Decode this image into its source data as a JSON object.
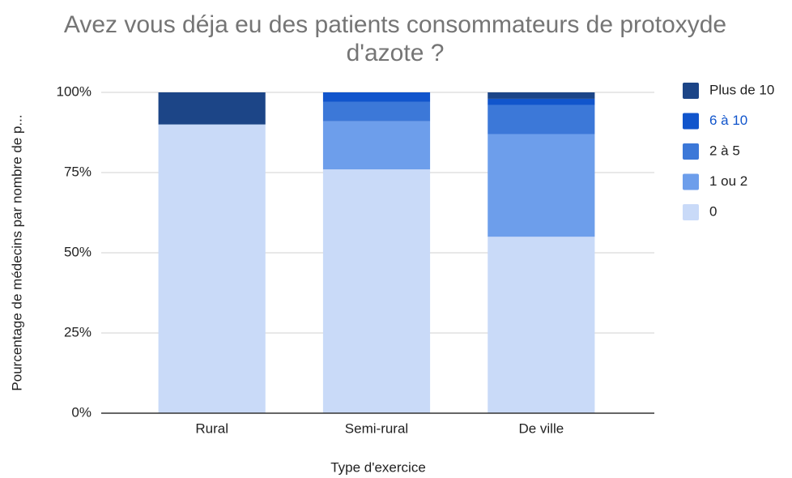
{
  "chart_data": {
    "type": "stacked_bar",
    "title": "Avez vous déja eu des patients consommateurs de protoxyde d'azote ?",
    "title_lines": [
      "Avez vous déja eu des patients consommateurs de protoxyde",
      "d'azote ?"
    ],
    "x_label": "Type d'exercice",
    "y_label": "Pourcentage de médecins par nombre de p...",
    "categories": [
      "Rural",
      "Semi-rural",
      "De ville"
    ],
    "series": [
      {
        "name": "0",
        "color": "#c9daf8",
        "values": [
          90,
          76,
          55
        ]
      },
      {
        "name": "1 ou 2",
        "color": "#6d9eeb",
        "values": [
          0,
          15,
          32
        ]
      },
      {
        "name": "2 à 5",
        "color": "#3c78d8",
        "values": [
          0,
          6,
          9
        ]
      },
      {
        "name": "6 à 10",
        "color": "#1155cc",
        "values": [
          0,
          3,
          2
        ]
      },
      {
        "name": "Plus de 10",
        "color": "#1c4587",
        "values": [
          10,
          0,
          2
        ]
      }
    ],
    "ylim": [
      0,
      100
    ],
    "yticks": [
      {
        "value": 0,
        "label": "0%"
      },
      {
        "value": 25,
        "label": "25%"
      },
      {
        "value": 50,
        "label": "50%"
      },
      {
        "value": 75,
        "label": "75%"
      },
      {
        "value": 100,
        "label": "100%"
      }
    ],
    "grid": true,
    "legend": "right"
  }
}
